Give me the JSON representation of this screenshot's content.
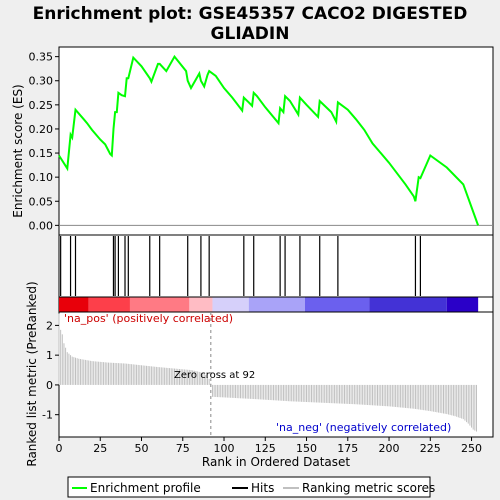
{
  "title_line1": "Enrichment plot: GSE45357 CACO2 DIGESTED",
  "title_line2": "GLIADIN",
  "chart_data": {
    "type": "line",
    "es_panel": {
      "ylabel": "Enrichment score (ES)",
      "ylim": [
        -0.02,
        0.37
      ],
      "yticks": [
        0.0,
        0.05,
        0.1,
        0.15,
        0.2,
        0.25,
        0.3,
        0.35
      ],
      "ytick_labels": [
        "0.00",
        "0.05",
        "0.10",
        "0.15",
        "0.20",
        "0.25",
        "0.30",
        "0.35"
      ],
      "color": "#00ff00",
      "series": [
        {
          "name": "Enrichment profile",
          "x": [
            0,
            5,
            7,
            8,
            10,
            15,
            17,
            20,
            25,
            28,
            31,
            32,
            33,
            34,
            35,
            36,
            38,
            40,
            41,
            42,
            45,
            50,
            55,
            56,
            60,
            61,
            65,
            70,
            77,
            78,
            80,
            85,
            86,
            88,
            90,
            91,
            95,
            100,
            105,
            111,
            112,
            115,
            117,
            118,
            120,
            125,
            133,
            134,
            136,
            137,
            140,
            145,
            146,
            150,
            157,
            158,
            165,
            168,
            169,
            175,
            180,
            185,
            190,
            200,
            210,
            215,
            216,
            218,
            219,
            225,
            235,
            245,
            254
          ],
          "y": [
            0.145,
            0.118,
            0.188,
            0.182,
            0.24,
            0.22,
            0.212,
            0.198,
            0.178,
            0.168,
            0.148,
            0.145,
            0.2,
            0.235,
            0.235,
            0.275,
            0.27,
            0.268,
            0.305,
            0.305,
            0.348,
            0.33,
            0.305,
            0.298,
            0.335,
            0.335,
            0.32,
            0.35,
            0.32,
            0.3,
            0.285,
            0.315,
            0.3,
            0.288,
            0.312,
            0.32,
            0.31,
            0.285,
            0.265,
            0.238,
            0.265,
            0.255,
            0.248,
            0.275,
            0.268,
            0.245,
            0.212,
            0.243,
            0.235,
            0.268,
            0.258,
            0.23,
            0.265,
            0.25,
            0.225,
            0.258,
            0.235,
            0.215,
            0.255,
            0.24,
            0.22,
            0.198,
            0.17,
            0.13,
            0.085,
            0.06,
            0.05,
            0.1,
            0.098,
            0.145,
            0.12,
            0.085,
            0.0
          ]
        }
      ]
    },
    "hits": [
      1,
      7,
      10,
      33,
      34,
      36,
      40,
      42,
      55,
      61,
      78,
      86,
      91,
      112,
      118,
      134,
      137,
      146,
      158,
      169,
      216,
      219
    ],
    "rank_panel": {
      "ylabel": "Ranked list metric (PreRanked)",
      "xlabel": "Rank in Ordered Dataset",
      "ylim": [
        -1.75,
        2.45
      ],
      "yticks": [
        -1,
        0,
        1,
        2
      ],
      "ytick_labels": [
        "-1",
        "0",
        "1",
        "2"
      ],
      "xlim": [
        0,
        263
      ],
      "xticks": [
        0,
        25,
        50,
        75,
        100,
        125,
        150,
        175,
        200,
        225,
        250
      ],
      "xtick_labels": [
        "0",
        "25",
        "50",
        "75",
        "100",
        "125",
        "150",
        "175",
        "200",
        "225",
        "250"
      ],
      "n_genes": 254,
      "metric_points": {
        "x": [
          0,
          1,
          2,
          3,
          5,
          8,
          12,
          20,
          30,
          40,
          50,
          60,
          70,
          80,
          88,
          91,
          92,
          93,
          100,
          120,
          140,
          160,
          180,
          200,
          215,
          225,
          235,
          240,
          245,
          248,
          251,
          254
        ],
        "y": [
          2.4,
          1.85,
          1.7,
          1.4,
          1.1,
          0.95,
          0.88,
          0.8,
          0.75,
          0.72,
          0.66,
          0.6,
          0.55,
          0.5,
          0.4,
          0.2,
          0.05,
          -0.4,
          -0.42,
          -0.48,
          -0.55,
          -0.6,
          -0.65,
          -0.72,
          -0.8,
          -0.88,
          -0.98,
          -1.05,
          -1.15,
          -1.3,
          -1.5,
          -1.6
        ]
      },
      "zero_cross": 92,
      "zero_cross_label": "Zero cross at 92",
      "pos_label": "'na_pos' (positively correlated)",
      "neg_label": "'na_neg' (negatively correlated)",
      "pos_label_color": "#cc0000",
      "neg_label_color": "#0000cc"
    },
    "heatbar": {
      "colors": [
        "#e8000a",
        "#fd3f4a",
        "#ff7a84",
        "#ffbcc4",
        "#d6d0fa",
        "#a9a3f8",
        "#6b60ee",
        "#4332d6",
        "#2a00c8"
      ],
      "stops": [
        0,
        18,
        43,
        79,
        93,
        115,
        149,
        188,
        235,
        254
      ]
    },
    "legend": [
      {
        "name": "Enrichment profile",
        "color": "#00ff00"
      },
      {
        "name": "Hits",
        "color": "#000000"
      },
      {
        "name": "Ranking metric scores",
        "color": "#c0c0c0"
      }
    ]
  }
}
